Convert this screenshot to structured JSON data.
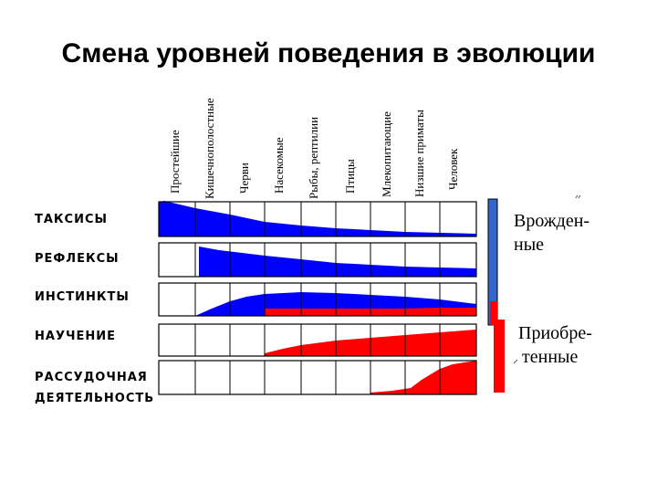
{
  "title": "Смена уровней поведения в эволюции",
  "columns": [
    "Простейшие",
    "Кишечнополостные",
    "Черви",
    "Насекомые",
    "Рыбы, рептилии",
    "Птицы",
    "Млекопитающие",
    "Низшие приматы",
    "Человек"
  ],
  "rows": [
    "ТАКСИСЫ",
    "РЕФЛЕКСЫ",
    "ИНСТИНКТЫ",
    "НАУЧЕНИЕ",
    "РАССУДОЧНАЯ",
    "ДЕЯТЕЛЬНОСТЬ"
  ],
  "legend": {
    "innate_line1": "Врожден-",
    "innate_line2": "ные",
    "acquired_line1": "Приобре-",
    "acquired_line2": "тенные"
  },
  "colors": {
    "innate": "#0000ff",
    "acquired": "#ff0000",
    "grid": "#000000",
    "bar_blue": "#3366cc"
  }
}
